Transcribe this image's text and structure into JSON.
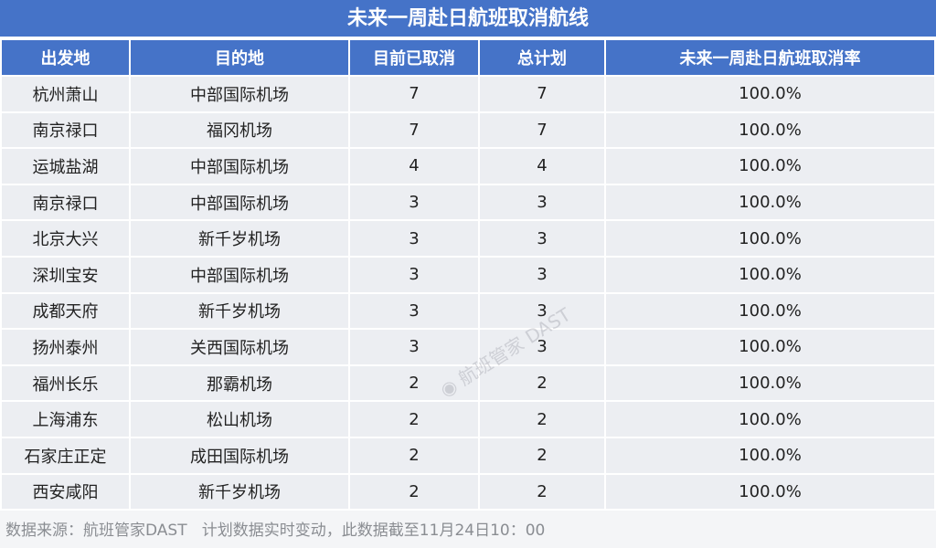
{
  "title": "未来一周赴日航班取消航线",
  "columns": [
    "出发地",
    "目的地",
    "目前已取消",
    "总计划",
    "未来一周赴日航班取消率"
  ],
  "rows": [
    [
      "杭州萧山",
      "中部国际机场",
      "7",
      "7",
      "100.0%"
    ],
    [
      "南京禄口",
      "福冈机场",
      "7",
      "7",
      "100.0%"
    ],
    [
      "运城盐湖",
      "中部国际机场",
      "4",
      "4",
      "100.0%"
    ],
    [
      "南京禄口",
      "中部国际机场",
      "3",
      "3",
      "100.0%"
    ],
    [
      "北京大兴",
      "新千岁机场",
      "3",
      "3",
      "100.0%"
    ],
    [
      "深圳宝安",
      "中部国际机场",
      "3",
      "3",
      "100.0%"
    ],
    [
      "成都天府",
      "新千岁机场",
      "3",
      "3",
      "100.0%"
    ],
    [
      "扬州泰州",
      "关西国际机场",
      "3",
      "3",
      "100.0%"
    ],
    [
      "福州长乐",
      "那霸机场",
      "2",
      "2",
      "100.0%"
    ],
    [
      "上海浦东",
      "松山机场",
      "2",
      "2",
      "100.0%"
    ],
    [
      "石家庄正定",
      "成田国际机场",
      "2",
      "2",
      "100.0%"
    ],
    [
      "西安咸阳",
      "新千岁机场",
      "2",
      "2",
      "100.0%"
    ]
  ],
  "footer": "数据来源：航班管家DAST   计划数据实时变动，此数据截至11月24日10：00",
  "watermark": "航班管家 DAST",
  "colors": {
    "header_bg": "#4573c8",
    "row_bg": "#eceef2"
  }
}
